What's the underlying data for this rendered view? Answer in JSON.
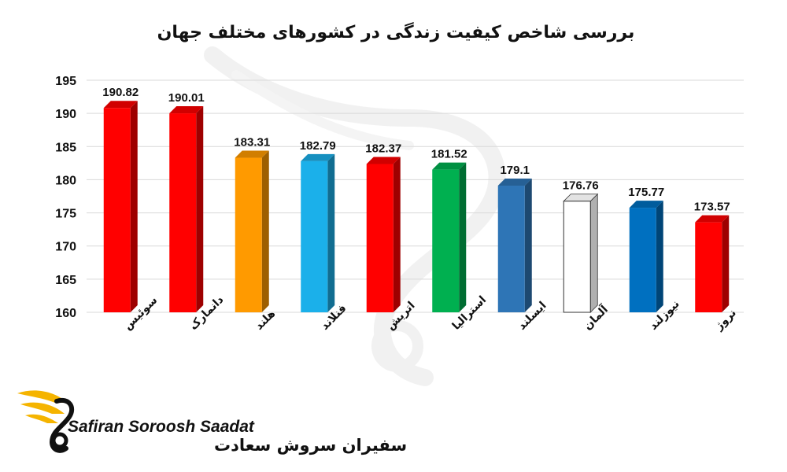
{
  "chart_data": {
    "type": "bar",
    "title": "بررسی شاخص کیفیت زندگی در کشورهای مختلف جهان",
    "xlabel": "",
    "ylabel": "",
    "ylim": [
      160,
      195
    ],
    "yticks": [
      160,
      165,
      170,
      175,
      180,
      185,
      190,
      195
    ],
    "grid": true,
    "legend": "none",
    "categories": [
      "سوئیس",
      "دانمارک",
      "هلند",
      "فنلاند",
      "اتریش",
      "استرالیا",
      "ایسلند",
      "آلمان",
      "نیوزلند",
      "نروژ"
    ],
    "values": [
      190.82,
      190.01,
      183.31,
      182.79,
      182.37,
      181.52,
      179.1,
      176.76,
      175.77,
      173.57
    ],
    "data_labels": [
      "190.82",
      "190.01",
      "183.31",
      "182.79",
      "182.37",
      "181.52",
      "179.1",
      "176.76",
      "175.77",
      "173.57"
    ],
    "colors": [
      "#ff0000",
      "#ff0000",
      "#ff9a00",
      "#1bb0ea",
      "#ff0000",
      "#00b050",
      "#2e75b6",
      "#ffffff",
      "#0070c0",
      "#ff0000"
    ]
  },
  "logo": {
    "brand_en": "Safiran Soroosh Saadat",
    "brand_fa": "سفیران سروش سعادت",
    "accent_color": "#f5b400"
  }
}
